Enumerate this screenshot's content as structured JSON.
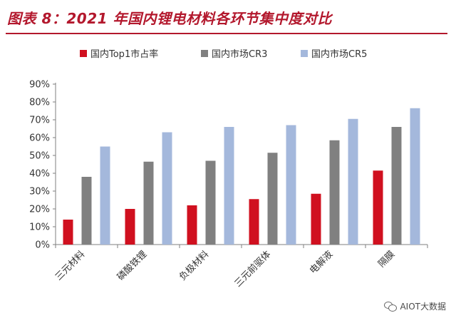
{
  "header": {
    "title": "图表 8：2021 年国内锂电材料各环节集中度对比"
  },
  "watermark": {
    "text": "AIOT大数据",
    "icon": "wechat-icon"
  },
  "chart_data": {
    "type": "bar",
    "categories": [
      "三元材料",
      "磷酸铁锂",
      "负极材料",
      "三元前驱体",
      "电解液",
      "隔膜"
    ],
    "series": [
      {
        "name": "国内Top1市占率",
        "color": "#d0101f",
        "values": [
          14,
          20,
          22,
          25.5,
          28.5,
          41.5
        ]
      },
      {
        "name": "国内市场CR3",
        "color": "#808080",
        "values": [
          38,
          46.5,
          47,
          51.5,
          58.5,
          66
        ]
      },
      {
        "name": "国内市场CR5",
        "color": "#a4b8dc",
        "values": [
          55,
          63,
          66,
          67,
          70.5,
          76.5
        ]
      }
    ],
    "yticks": [
      "0%",
      "10%",
      "20%",
      "30%",
      "40%",
      "50%",
      "60%",
      "70%",
      "80%",
      "90%"
    ],
    "ylim": [
      0,
      90
    ],
    "legend_position": "top",
    "grid": false
  }
}
